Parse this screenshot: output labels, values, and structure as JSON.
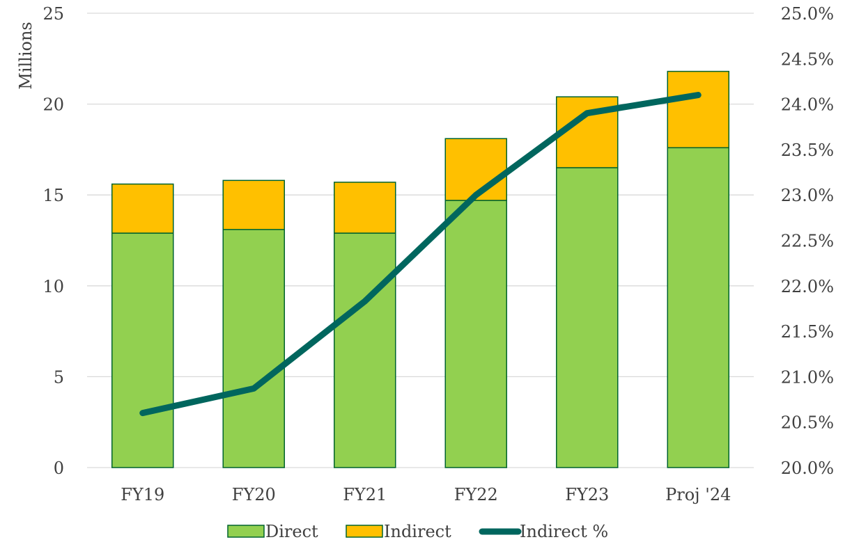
{
  "chart_data": {
    "type": "bar",
    "stacked": true,
    "categories": [
      "FY19",
      "FY20",
      "FY21",
      "FY22",
      "FY23",
      "Proj '24"
    ],
    "series": [
      {
        "name": "Direct",
        "values": [
          12.9,
          13.1,
          12.9,
          14.7,
          16.5,
          17.6
        ],
        "color": "#92d050",
        "stroke": "#00632e"
      },
      {
        "name": "Indirect",
        "values": [
          2.7,
          2.7,
          2.8,
          3.4,
          3.9,
          4.2
        ],
        "color": "#ffc000",
        "stroke": "#00632e"
      },
      {
        "name": "Indirect %",
        "type": "line",
        "axis": "right",
        "values": [
          20.6,
          20.87,
          21.83,
          23.0,
          23.9,
          24.1
        ],
        "color": "#00665e"
      }
    ],
    "ylabel": "Millions",
    "ylim": [
      0,
      25
    ],
    "yticks": [
      "0",
      "5",
      "10",
      "15",
      "20",
      "25"
    ],
    "y2lim": [
      20.0,
      25.0
    ],
    "y2ticks": [
      "20.0%",
      "20.5%",
      "21.0%",
      "21.5%",
      "22.0%",
      "22.5%",
      "23.0%",
      "23.5%",
      "24.0%",
      "24.5%",
      "25.0%"
    ],
    "grid": true,
    "legend": "bottom"
  }
}
